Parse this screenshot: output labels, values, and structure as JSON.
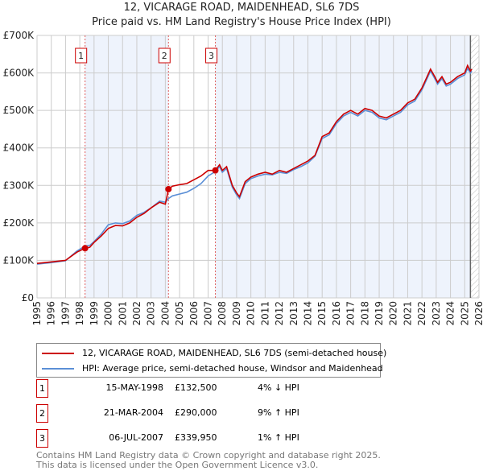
{
  "header": {
    "title": "12, VICARAGE ROAD, MAIDENHEAD, SL6 7DS",
    "subtitle": "Price paid vs. HM Land Registry's House Price Index (HPI)"
  },
  "chart_data": {
    "type": "line",
    "title": "12, VICARAGE ROAD, MAIDENHEAD, SL6 7DS",
    "subtitle": "Price paid vs. HM Land Registry's House Price Index (HPI)",
    "xlim": [
      1995,
      2026
    ],
    "ylim": [
      0,
      700000
    ],
    "xticks": [
      "1995",
      "1996",
      "1997",
      "1998",
      "1999",
      "2000",
      "2001",
      "2002",
      "2003",
      "2004",
      "2005",
      "2006",
      "2007",
      "2008",
      "2009",
      "2010",
      "2011",
      "2012",
      "2013",
      "2014",
      "2015",
      "2016",
      "2017",
      "2018",
      "2019",
      "2020",
      "2021",
      "2022",
      "2023",
      "2024",
      "2025",
      "2026"
    ],
    "yticks": [
      {
        "v": 0,
        "label": "£0"
      },
      {
        "v": 100000,
        "label": "£100K"
      },
      {
        "v": 200000,
        "label": "£200K"
      },
      {
        "v": 300000,
        "label": "£300K"
      },
      {
        "v": 400000,
        "label": "£400K"
      },
      {
        "v": 500000,
        "label": "£500K"
      },
      {
        "v": 600000,
        "label": "£600K"
      },
      {
        "v": 700000,
        "label": "£700K"
      }
    ],
    "grid": true,
    "series": [
      {
        "name": "12, VICARAGE ROAD, MAIDENHEAD, SL6 7DS (semi-detached house)",
        "color": "#cc0000",
        "x": [
          1995,
          1996,
          1997,
          1997.8,
          1998.37,
          1998.7,
          1999,
          1999.5,
          2000,
          2000.5,
          2001,
          2001.5,
          2002,
          2002.5,
          2003,
          2003.6,
          2004,
          2004.22,
          2004.5,
          2005,
          2005.5,
          2006,
          2006.5,
          2007,
          2007.51,
          2007.8,
          2008,
          2008.3,
          2008.7,
          2009,
          2009.2,
          2009.6,
          2010,
          2010.5,
          2011,
          2011.5,
          2012,
          2012.5,
          2013,
          2013.5,
          2014,
          2014.5,
          2015,
          2015.5,
          2016,
          2016.5,
          2017,
          2017.5,
          2018,
          2018.5,
          2019,
          2019.5,
          2020,
          2020.5,
          2021,
          2021.5,
          2022,
          2022.3,
          2022.6,
          2022.9,
          2023.1,
          2023.4,
          2023.7,
          2024,
          2024.5,
          2025,
          2025.2,
          2025.4,
          2025.5
        ],
        "y": [
          92000,
          96000,
          100000,
          122000,
          132500,
          135000,
          148000,
          165000,
          185000,
          193000,
          192000,
          200000,
          215000,
          225000,
          240000,
          255000,
          250000,
          290000,
          298000,
          302000,
          305000,
          315000,
          325000,
          340000,
          339950,
          355000,
          340000,
          350000,
          300000,
          280000,
          270000,
          310000,
          322000,
          330000,
          335000,
          330000,
          340000,
          335000,
          345000,
          355000,
          365000,
          380000,
          430000,
          440000,
          470000,
          490000,
          500000,
          490000,
          505000,
          500000,
          485000,
          480000,
          490000,
          500000,
          520000,
          530000,
          560000,
          585000,
          610000,
          590000,
          575000,
          590000,
          570000,
          575000,
          590000,
          600000,
          620000,
          605000,
          610000
        ]
      },
      {
        "name": "HPI: Average price, semi-detached house, Windsor and Maidenhead",
        "color": "#5b8fd6",
        "x": [
          1995,
          1996,
          1997,
          1997.8,
          1998.37,
          1998.7,
          1999,
          1999.5,
          2000,
          2000.5,
          2001,
          2001.5,
          2002,
          2002.5,
          2003,
          2003.6,
          2004,
          2004.22,
          2004.5,
          2005,
          2005.5,
          2006,
          2006.5,
          2007,
          2007.51,
          2007.8,
          2008,
          2008.3,
          2008.7,
          2009,
          2009.2,
          2009.6,
          2010,
          2010.5,
          2011,
          2011.5,
          2012,
          2012.5,
          2013,
          2013.5,
          2014,
          2014.5,
          2015,
          2015.5,
          2016,
          2016.5,
          2017,
          2017.5,
          2018,
          2018.5,
          2019,
          2019.5,
          2020,
          2020.5,
          2021,
          2021.5,
          2022,
          2022.3,
          2022.6,
          2022.9,
          2023.1,
          2023.4,
          2023.7,
          2024,
          2024.5,
          2025,
          2025.2,
          2025.4,
          2025.5
        ],
        "y": [
          90000,
          94000,
          99000,
          125000,
          138000,
          140000,
          150000,
          170000,
          195000,
          200000,
          198000,
          205000,
          220000,
          228000,
          240000,
          258000,
          255000,
          265000,
          272000,
          277000,
          282000,
          292000,
          305000,
          325000,
          337000,
          350000,
          335000,
          345000,
          295000,
          275000,
          265000,
          305000,
          318000,
          325000,
          330000,
          328000,
          335000,
          332000,
          342000,
          350000,
          360000,
          378000,
          425000,
          435000,
          465000,
          485000,
          495000,
          485000,
          500000,
          495000,
          480000,
          475000,
          485000,
          495000,
          515000,
          525000,
          555000,
          580000,
          605000,
          585000,
          570000,
          585000,
          565000,
          570000,
          585000,
          595000,
          612000,
          600000,
          605000
        ]
      }
    ],
    "sales": [
      {
        "id": "1",
        "x": 1998.37,
        "y": 132500
      },
      {
        "id": "2",
        "x": 2004.22,
        "y": 290000
      },
      {
        "id": "3",
        "x": 2007.51,
        "y": 339950
      }
    ],
    "shaded_ranges": [
      [
        1998.37,
        2004.22
      ],
      [
        2007.51,
        2025.4
      ]
    ],
    "hatched_from": 2025.4
  },
  "legend": [
    {
      "label": "12, VICARAGE ROAD, MAIDENHEAD, SL6 7DS (semi-detached house)",
      "color": "#cc0000"
    },
    {
      "label": "HPI: Average price, semi-detached house, Windsor and Maidenhead",
      "color": "#5b8fd6"
    }
  ],
  "transactions": [
    {
      "id": "1",
      "date": "15-MAY-1998",
      "price": "£132,500",
      "hpi": "4% ↓ HPI"
    },
    {
      "id": "2",
      "date": "21-MAR-2004",
      "price": "£290,000",
      "hpi": "9% ↑ HPI"
    },
    {
      "id": "3",
      "date": "06-JUL-2007",
      "price": "£339,950",
      "hpi": "1% ↑ HPI"
    }
  ],
  "footer": {
    "line1": "Contains HM Land Registry data © Crown copyright and database right 2025.",
    "line2": "This data is licensed under the Open Government Licence v3.0."
  }
}
